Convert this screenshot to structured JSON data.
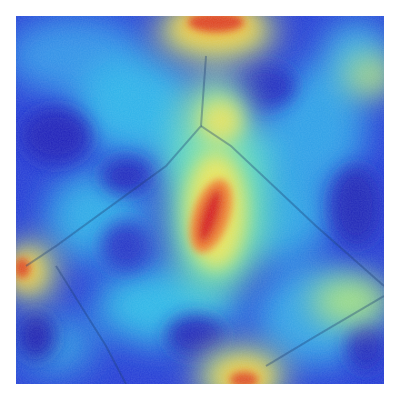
{
  "image": {
    "kind": "attention-heatmap-overlay",
    "colormap": [
      "#1a1fc4",
      "#2f5fe6",
      "#27b3e6",
      "#5fe0b8",
      "#e6e65a",
      "#f08a2a",
      "#d81f1a"
    ],
    "hotspots": [
      {
        "label": "central-vertical-hotspot",
        "intensity": 1.0
      },
      {
        "label": "top-hotspot",
        "intensity": 0.9
      },
      {
        "label": "left-edge-hotspot",
        "intensity": 0.7
      },
      {
        "label": "bottom-hotspot",
        "intensity": 0.6
      },
      {
        "label": "top-right-hotspot",
        "intensity": 0.45
      },
      {
        "label": "right-lower-hotspot",
        "intensity": 0.45
      }
    ]
  }
}
